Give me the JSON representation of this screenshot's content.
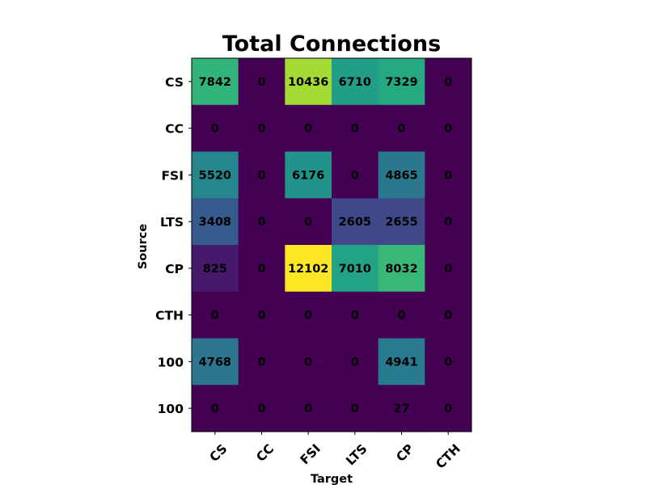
{
  "chart_data": {
    "type": "heatmap",
    "title": "Total Connections",
    "xlabel": "Target",
    "ylabel": "Source",
    "x_categories": [
      "CS",
      "CC",
      "FSI",
      "LTS",
      "CP",
      "CTH"
    ],
    "y_categories": [
      "CS",
      "CC",
      "FSI",
      "LTS",
      "CP",
      "CTH",
      "100",
      "100"
    ],
    "values": [
      [
        7842,
        0,
        10436,
        6710,
        7329,
        0
      ],
      [
        0,
        0,
        0,
        0,
        0,
        0
      ],
      [
        5520,
        0,
        6176,
        0,
        4865,
        0
      ],
      [
        3408,
        0,
        0,
        2605,
        2655,
        0
      ],
      [
        825,
        0,
        12102,
        7010,
        8032,
        0
      ],
      [
        0,
        0,
        0,
        0,
        0,
        0
      ],
      [
        4768,
        0,
        0,
        0,
        4941,
        0
      ],
      [
        0,
        0,
        0,
        0,
        27,
        0
      ]
    ],
    "colormap": "viridis",
    "value_range": [
      0,
      12102
    ],
    "grid": false
  }
}
